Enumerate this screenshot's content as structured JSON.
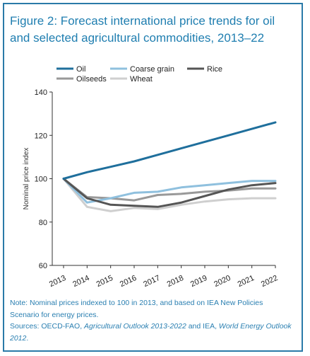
{
  "title": "Figure 2: Forecast international price trends for oil and selected agricultural commodities, 2013–22",
  "note": {
    "line1": "Note: Nominal prices indexed to 100 in 2013, and based on IEA New Policies Scenario for energy prices.",
    "sources_prefix": "Sources: OECD-FAO, ",
    "sources_italic1": "Agricultural Outlook 2013-2022",
    "sources_mid": " and IEA, ",
    "sources_italic2": "World Energy Outlook 2012",
    "sources_end": "."
  },
  "chart_data": {
    "type": "line",
    "title": "Figure 2: Forecast international price trends for oil and selected agricultural commodities, 2013–22",
    "xlabel": "",
    "ylabel": "Nominal price index",
    "x": [
      "2013",
      "2014",
      "2015",
      "2016",
      "2017",
      "2018",
      "2019",
      "2020",
      "2021",
      "2022"
    ],
    "ylim": [
      60,
      140
    ],
    "yticks": [
      60,
      80,
      100,
      120,
      140
    ],
    "grid": false,
    "legend_position": "top",
    "series": [
      {
        "name": "Oil",
        "color": "#1f6f9c",
        "width": 3,
        "values": [
          100,
          103,
          105.5,
          108,
          111,
          114,
          117,
          120,
          123,
          126
        ]
      },
      {
        "name": "Coarse grain",
        "color": "#8fc0de",
        "width": 3,
        "values": [
          100,
          89,
          91,
          93.5,
          94,
          96,
          97,
          98,
          99,
          99
        ]
      },
      {
        "name": "Rice",
        "color": "#555555",
        "width": 3,
        "values": [
          100,
          91,
          88,
          87.5,
          87,
          89,
          92,
          95,
          97,
          98
        ]
      },
      {
        "name": "Oilseeds",
        "color": "#999999",
        "width": 3,
        "values": [
          100,
          91.5,
          91,
          90,
          92.5,
          93,
          94,
          94.5,
          95.5,
          95.5
        ]
      },
      {
        "name": "Wheat",
        "color": "#cfcfcf",
        "width": 3,
        "values": [
          100,
          87,
          85,
          86.5,
          86,
          88,
          89.5,
          90.5,
          91,
          91
        ]
      }
    ]
  }
}
